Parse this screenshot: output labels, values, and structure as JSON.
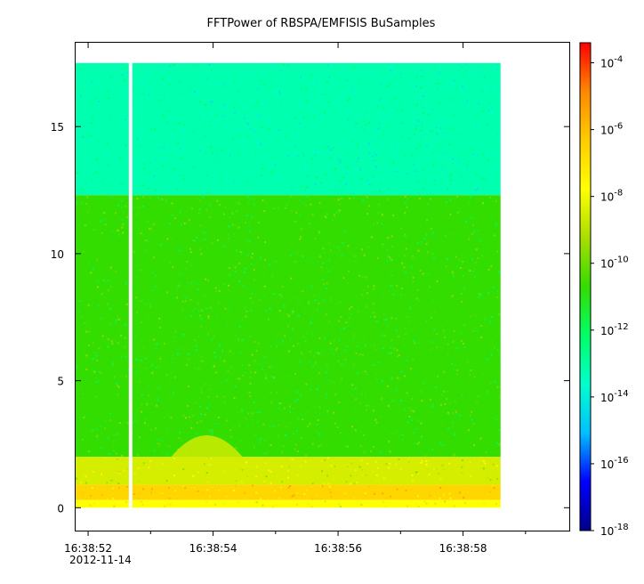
{
  "chart_data": {
    "type": "heatmap",
    "title": "FFTPower of RBSPA/EMFISIS  BuSamples",
    "xlabel": "",
    "ylabel": "",
    "x_tick_labels": [
      "16:38:52",
      "16:38:54",
      "16:38:56",
      "16:38:58"
    ],
    "x_tick_values_sec": [
      52,
      54,
      56,
      58
    ],
    "x_minor_tick_values_sec": [
      53,
      55,
      57,
      59
    ],
    "x_date_label": "2012-11-14",
    "xlim_sec": [
      51.8,
      59.7
    ],
    "y_ticks": [
      0,
      5,
      10,
      15
    ],
    "ylim": [
      -0.9,
      18.3
    ],
    "data_x_range_sec": [
      51.8,
      58.6
    ],
    "data_y_range": [
      0,
      17.5
    ],
    "gap_x_sec": 52.68,
    "colorbar": {
      "scale": "log",
      "range_exponent": [
        -18,
        -3.4
      ],
      "tick_exponents": [
        -18,
        -16,
        -14,
        -12,
        -10,
        -8,
        -6,
        -4
      ],
      "tick_labels": [
        "10-18",
        "10-16",
        "10-14",
        "10-12",
        "10-10",
        "10-8",
        "10-6",
        "10-4"
      ],
      "colormap": [
        "#00008b",
        "#0000ff",
        "#00bfff",
        "#00ffcc",
        "#00ff66",
        "#33dd00",
        "#aadd00",
        "#ffff00",
        "#ffcc00",
        "#ff8800",
        "#ff0000"
      ]
    },
    "power_bands": [
      {
        "y_from": 12.3,
        "y_to": 17.5,
        "log10_power": -13.2
      },
      {
        "y_from": 2.0,
        "y_to": 12.3,
        "log10_power": -10.7
      },
      {
        "y_from": 0.9,
        "y_to": 2.0,
        "log10_power": -8.5
      },
      {
        "y_from": 0.3,
        "y_to": 0.9,
        "log10_power": -6.6
      },
      {
        "y_from": 0.0,
        "y_to": 0.3,
        "log10_power": -7.8
      }
    ],
    "enhancement": {
      "x_center_sec": 53.9,
      "y_peak": 3.0,
      "log10_power": -8.6
    }
  }
}
